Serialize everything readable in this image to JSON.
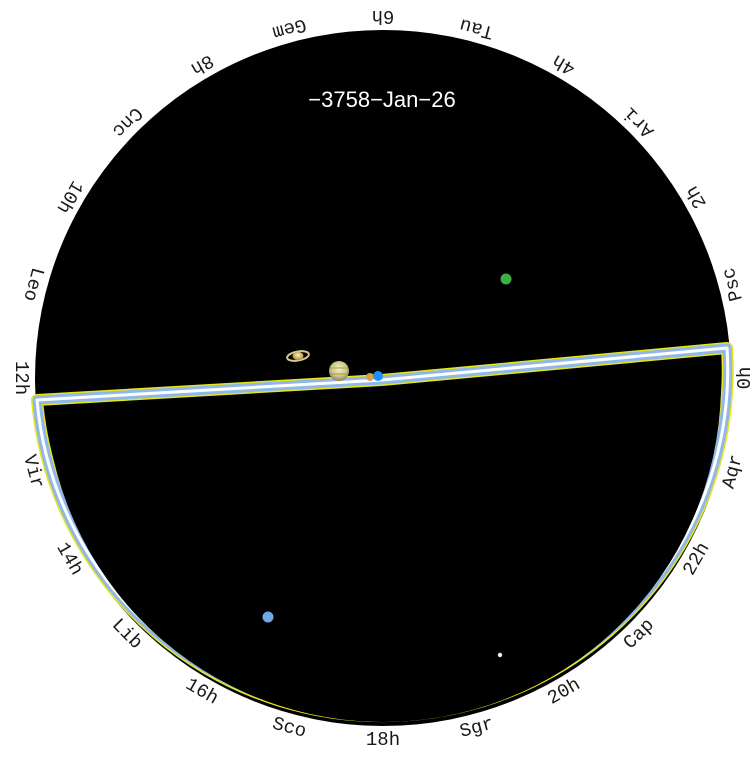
{
  "date": "−3758−Jan−26",
  "ring_labels": [
    {
      "text": "6h",
      "angle": 0
    },
    {
      "text": "Tau",
      "angle": 15
    },
    {
      "text": "4h",
      "angle": 30
    },
    {
      "text": "Ari",
      "angle": 45
    },
    {
      "text": "2h",
      "angle": 60
    },
    {
      "text": "Psc",
      "angle": 75
    },
    {
      "text": "0h",
      "angle": 90
    },
    {
      "text": "Aqr",
      "angle": 105
    },
    {
      "text": "22h",
      "angle": 120
    },
    {
      "text": "Cap",
      "angle": 135
    },
    {
      "text": "20h",
      "angle": 150
    },
    {
      "text": "Sgr",
      "angle": 165
    },
    {
      "text": "18h",
      "angle": 180
    },
    {
      "text": "Sco",
      "angle": 195
    },
    {
      "text": "16h",
      "angle": 210
    },
    {
      "text": "Lib",
      "angle": 225
    },
    {
      "text": "14h",
      "angle": 240
    },
    {
      "text": "Vir",
      "angle": 255
    },
    {
      "text": "12h",
      "angle": 270
    },
    {
      "text": "Leo",
      "angle": 285
    },
    {
      "text": "10h",
      "angle": 300
    },
    {
      "text": "Cnc",
      "angle": 315
    },
    {
      "text": "8h",
      "angle": 330
    },
    {
      "text": "Gem",
      "angle": 345
    }
  ],
  "colors": {
    "sky": "#000000",
    "milky_way_band": "#8fb8e8",
    "band_edge": "#e6e61a",
    "mars": "#3cb043",
    "mercury": "#1e90ff",
    "venus": "#6fa8e8",
    "moon": "#f0f0f0"
  },
  "bodies": [
    {
      "name": "mars",
      "icon": "green-planet-dot"
    },
    {
      "name": "saturn",
      "icon": "ringed-planet"
    },
    {
      "name": "jupiter",
      "icon": "banded-planet"
    },
    {
      "name": "mercury",
      "icon": "blue-planet-dot"
    },
    {
      "name": "venus",
      "icon": "light-blue-planet-dot"
    },
    {
      "name": "moon",
      "icon": "white-dot"
    }
  ]
}
